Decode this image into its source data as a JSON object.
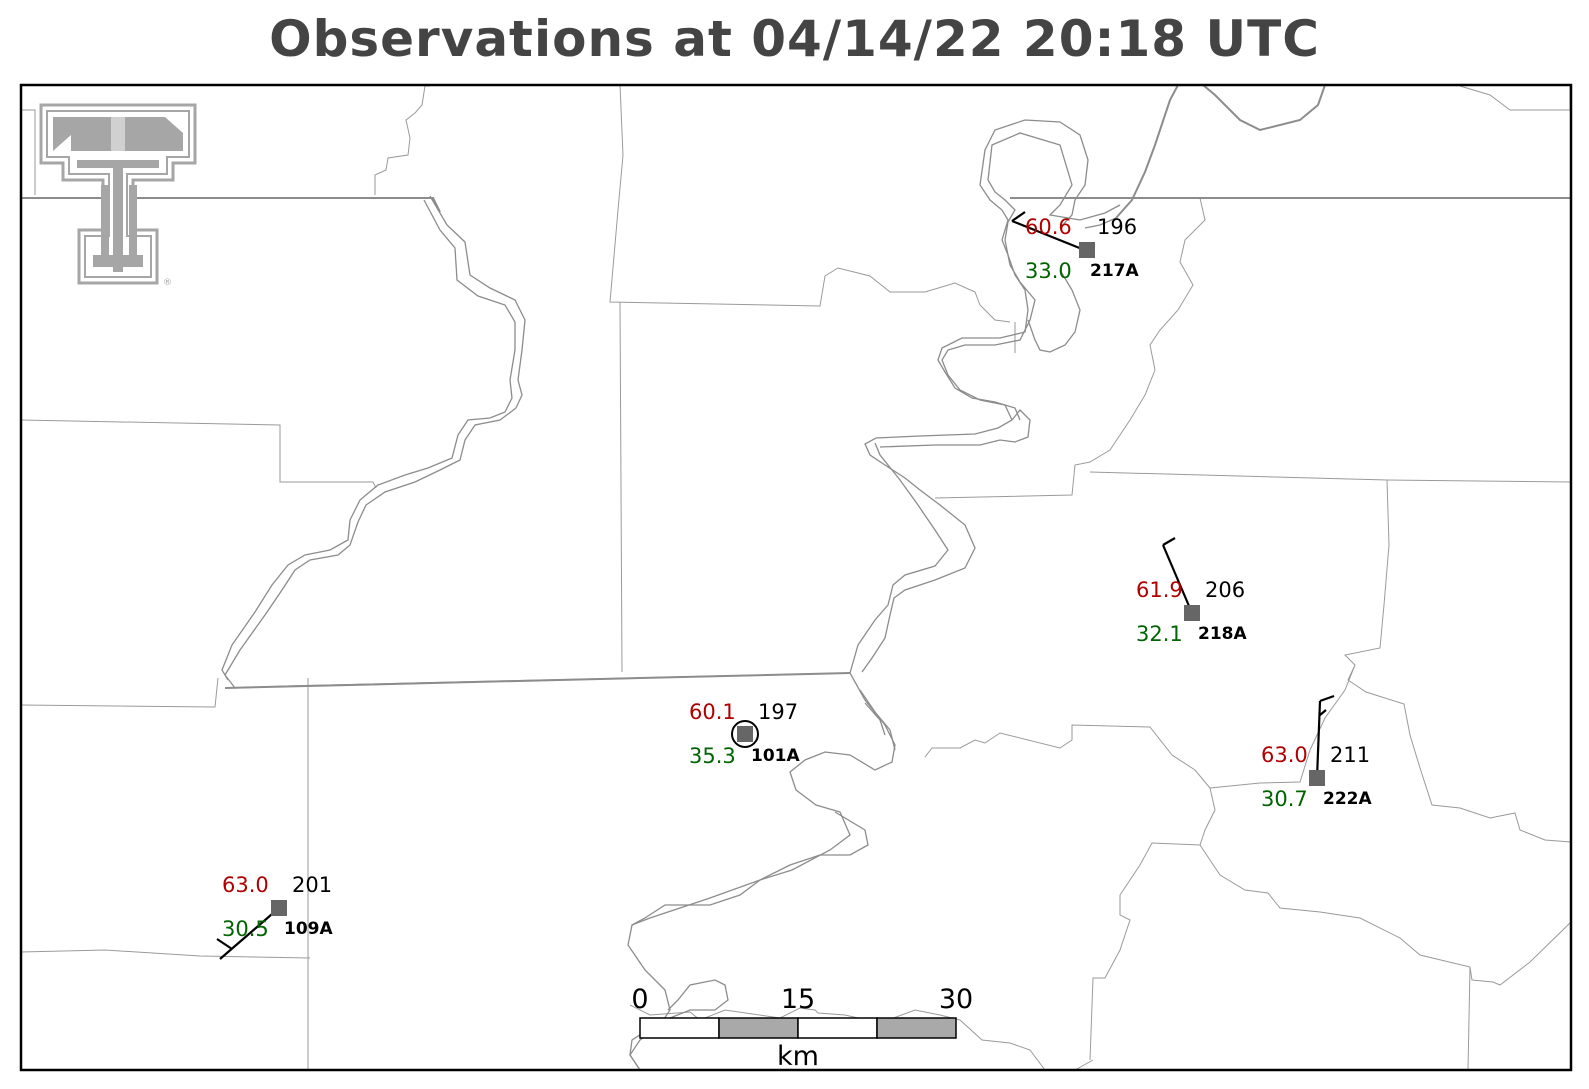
{
  "title": "Observations at 04/14/22 20:18 UTC",
  "logo": {
    "icon": "double-t-logo-icon",
    "mark": "®"
  },
  "colors": {
    "temperature": "#b00000",
    "dewpoint": "#006400",
    "station_marker": "#666666"
  },
  "stations": [
    {
      "id": "217A",
      "temp": "60.6",
      "dewpoint": "33.0",
      "wind_dir": "196"
    },
    {
      "id": "218A",
      "temp": "61.9",
      "dewpoint": "32.1",
      "wind_dir": "206"
    },
    {
      "id": "101A",
      "temp": "60.1",
      "dewpoint": "35.3",
      "wind_dir": "197"
    },
    {
      "id": "222A",
      "temp": "63.0",
      "dewpoint": "30.7",
      "wind_dir": "211"
    },
    {
      "id": "109A",
      "temp": "63.0",
      "dewpoint": "30.5",
      "wind_dir": "201"
    }
  ],
  "scale_bar": {
    "labels": [
      "0",
      "15",
      "30"
    ],
    "unit": "km"
  }
}
